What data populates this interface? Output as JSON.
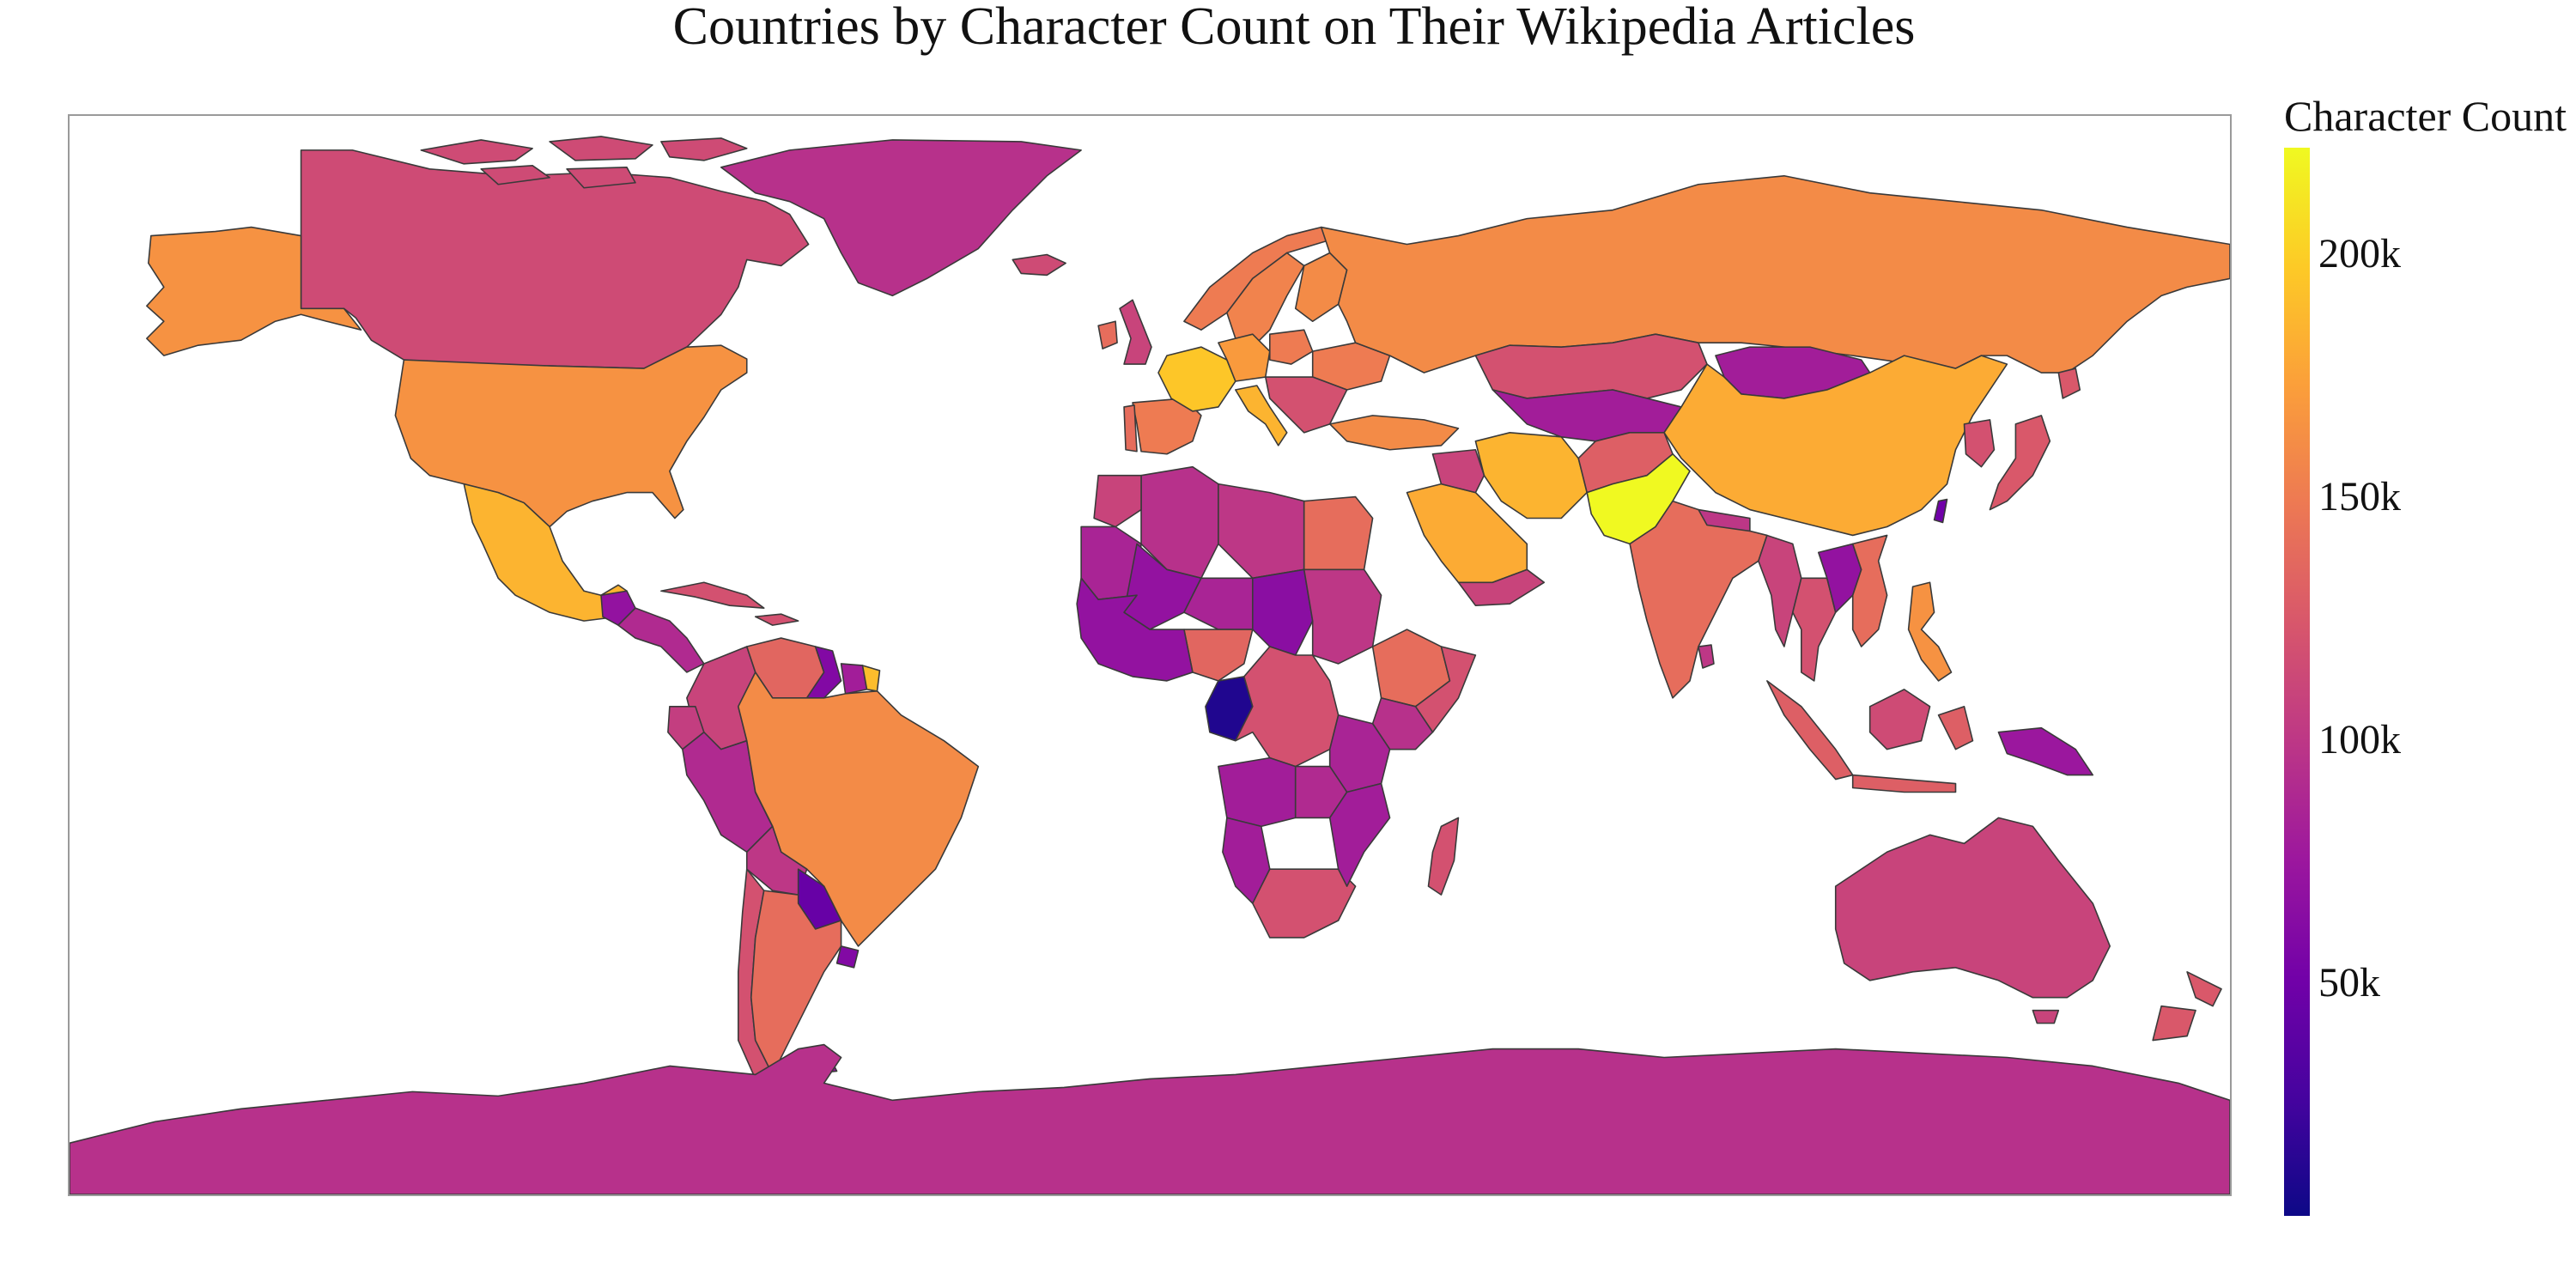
{
  "title": "Countries by Character Count on Their Wikipedia Articles",
  "colorbar": {
    "title": "Character Count",
    "colorscale": "plasma",
    "min": 2000,
    "max": 222000,
    "tickvals": [
      50000,
      100000,
      150000,
      200000
    ],
    "ticktext": [
      "50k",
      "100k",
      "150k",
      "200k"
    ],
    "stops": [
      "#0d0887",
      "#46039f",
      "#7201a8",
      "#9c179e",
      "#bd3786",
      "#d8576b",
      "#ed7953",
      "#fb9f3a",
      "#fdca26",
      "#f0f921"
    ]
  },
  "map": {
    "projection": "equirectangular",
    "border_color": "#3a3a3a",
    "no_data_color": "#ffffff",
    "regions": [
      {
        "name": "Canada",
        "value": 115000
      },
      {
        "name": "Canadian Arctic Archipelago",
        "value": 115000
      },
      {
        "name": "Alaska",
        "value": 165000
      },
      {
        "name": "United States",
        "value": 165000
      },
      {
        "name": "Mexico",
        "value": 185000
      },
      {
        "name": "Guatemala",
        "value": 70000
      },
      {
        "name": "Central America",
        "value": 90000
      },
      {
        "name": "Cuba",
        "value": 120000
      },
      {
        "name": "Greenland",
        "value": 95000
      },
      {
        "name": "Iceland",
        "value": 115000
      },
      {
        "name": "Colombia",
        "value": 110000
      },
      {
        "name": "Venezuela",
        "value": 135000
      },
      {
        "name": "Guyana",
        "value": 60000
      },
      {
        "name": "Suriname",
        "value": 80000
      },
      {
        "name": "French Guiana",
        "value": 190000
      },
      {
        "name": "Ecuador",
        "value": 105000
      },
      {
        "name": "Peru",
        "value": 90000
      },
      {
        "name": "Brazil",
        "value": 160000
      },
      {
        "name": "Bolivia",
        "value": 100000
      },
      {
        "name": "Paraguay",
        "value": 45000
      },
      {
        "name": "Chile",
        "value": 120000
      },
      {
        "name": "Argentina",
        "value": 140000
      },
      {
        "name": "Uruguay",
        "value": 60000
      },
      {
        "name": "Falkland Islands",
        "value": 70000
      },
      {
        "name": "United Kingdom",
        "value": 110000
      },
      {
        "name": "Ireland",
        "value": 140000
      },
      {
        "name": "Norway",
        "value": 150000
      },
      {
        "name": "Sweden",
        "value": 155000
      },
      {
        "name": "Finland",
        "value": 160000
      },
      {
        "name": "Spain",
        "value": 150000
      },
      {
        "name": "Portugal",
        "value": 140000
      },
      {
        "name": "France",
        "value": 195000
      },
      {
        "name": "Germany",
        "value": 170000
      },
      {
        "name": "Italy",
        "value": 185000
      },
      {
        "name": "Poland",
        "value": 150000
      },
      {
        "name": "Ukraine",
        "value": 150000
      },
      {
        "name": "Balkans",
        "value": 120000
      },
      {
        "name": "Turkey",
        "value": 160000
      },
      {
        "name": "Russia",
        "value": 160000
      },
      {
        "name": "Kazakhstan",
        "value": 120000
      },
      {
        "name": "Central Asia",
        "value": 80000
      },
      {
        "name": "Mongolia",
        "value": 80000
      },
      {
        "name": "China",
        "value": 180000
      },
      {
        "name": "Iran",
        "value": 185000
      },
      {
        "name": "Afghanistan",
        "value": 130000
      },
      {
        "name": "Pakistan",
        "value": 222000
      },
      {
        "name": "Saudi Arabia",
        "value": 180000
      },
      {
        "name": "Yemen",
        "value": 110000
      },
      {
        "name": "Iraq",
        "value": 110000
      },
      {
        "name": "India",
        "value": 140000
      },
      {
        "name": "Nepal",
        "value": 100000
      },
      {
        "name": "Myanmar",
        "value": 110000
      },
      {
        "name": "Thailand",
        "value": 120000
      },
      {
        "name": "Laos",
        "value": 70000
      },
      {
        "name": "Vietnam",
        "value": 140000
      },
      {
        "name": "Japan",
        "value": 125000
      },
      {
        "name": "Korea",
        "value": 120000
      },
      {
        "name": "Philippines",
        "value": 165000
      },
      {
        "name": "Indonesia",
        "value": 130000
      },
      {
        "name": "Borneo",
        "value": 115000
      },
      {
        "name": "Papua New Guinea",
        "value": 75000
      },
      {
        "name": "Australia",
        "value": 110000
      },
      {
        "name": "New Zealand",
        "value": 125000
      },
      {
        "name": "Sri Lanka",
        "value": 100000
      },
      {
        "name": "Taiwan",
        "value": 50000
      },
      {
        "name": "Algeria",
        "value": 95000
      },
      {
        "name": "Libya",
        "value": 100000
      },
      {
        "name": "Egypt",
        "value": 140000
      },
      {
        "name": "Morocco",
        "value": 110000
      },
      {
        "name": "Mauritania",
        "value": 85000
      },
      {
        "name": "Mali",
        "value": 70000
      },
      {
        "name": "Niger",
        "value": 85000
      },
      {
        "name": "Chad",
        "value": 65000
      },
      {
        "name": "Sudan",
        "value": 100000
      },
      {
        "name": "Ethiopia",
        "value": 140000
      },
      {
        "name": "Somalia",
        "value": 120000
      },
      {
        "name": "Nigeria",
        "value": 135000
      },
      {
        "name": "West Africa",
        "value": 70000
      },
      {
        "name": "Congo",
        "value": 10000
      },
      {
        "name": "DR Congo",
        "value": 120000
      },
      {
        "name": "Kenya",
        "value": 95000
      },
      {
        "name": "Tanzania",
        "value": 85000
      },
      {
        "name": "Angola",
        "value": 80000
      },
      {
        "name": "Zambia",
        "value": 90000
      },
      {
        "name": "Namibia",
        "value": 80000
      },
      {
        "name": "South Africa",
        "value": 120000
      },
      {
        "name": "Mozambique",
        "value": 80000
      },
      {
        "name": "Madagascar",
        "value": 120000
      },
      {
        "name": "Antarctica",
        "value": 95000
      }
    ]
  }
}
